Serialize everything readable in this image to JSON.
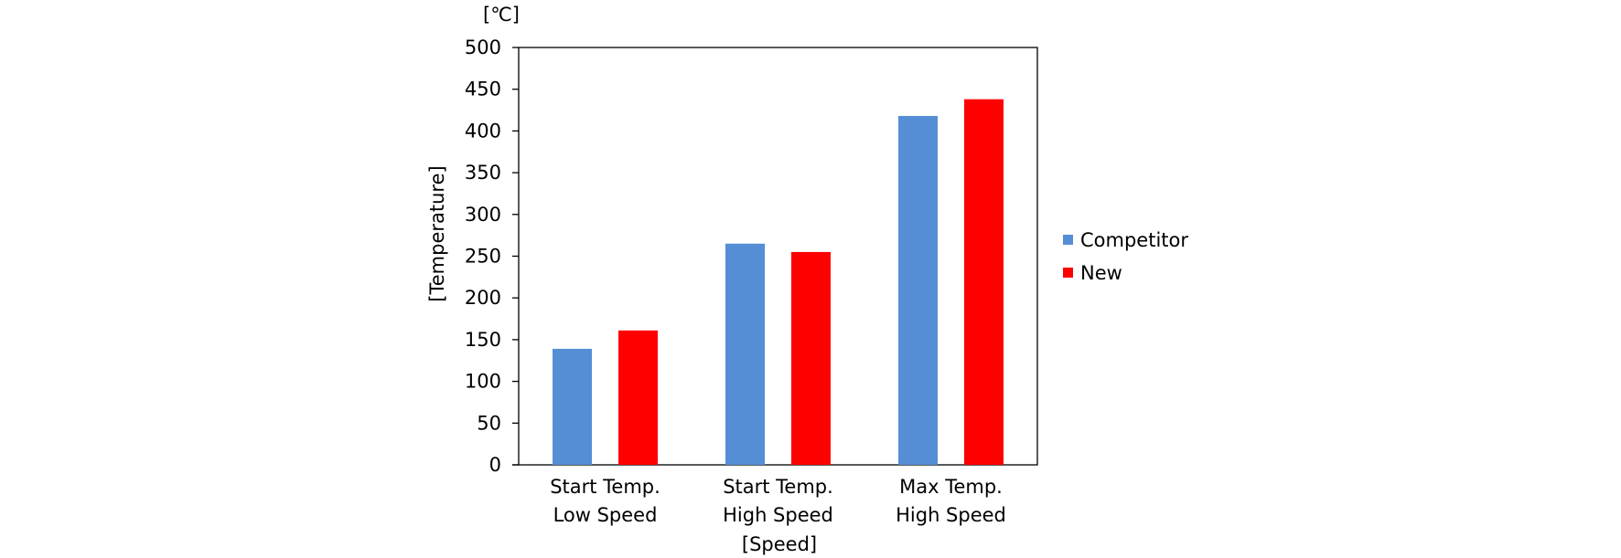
{
  "chart_data": {
    "type": "bar",
    "categories": [
      [
        "Start Temp.",
        "Low Speed"
      ],
      [
        "Start Temp.",
        "High Speed"
      ],
      [
        "Max Temp.",
        "High Speed"
      ]
    ],
    "series": [
      {
        "name": "Competitor",
        "color": "#558ED5",
        "values": [
          139,
          265,
          418
        ]
      },
      {
        "name": "New",
        "color": "#FF0000",
        "values": [
          161,
          255,
          438
        ]
      }
    ],
    "unit_label": "[℃]",
    "xlabel": "[Speed]",
    "ylabel": "[Temperature]",
    "ylim": [
      0,
      500
    ],
    "yticks": [
      0,
      50,
      100,
      150,
      200,
      250,
      300,
      350,
      400,
      450,
      500
    ],
    "grid": false,
    "legend_position": "right"
  }
}
